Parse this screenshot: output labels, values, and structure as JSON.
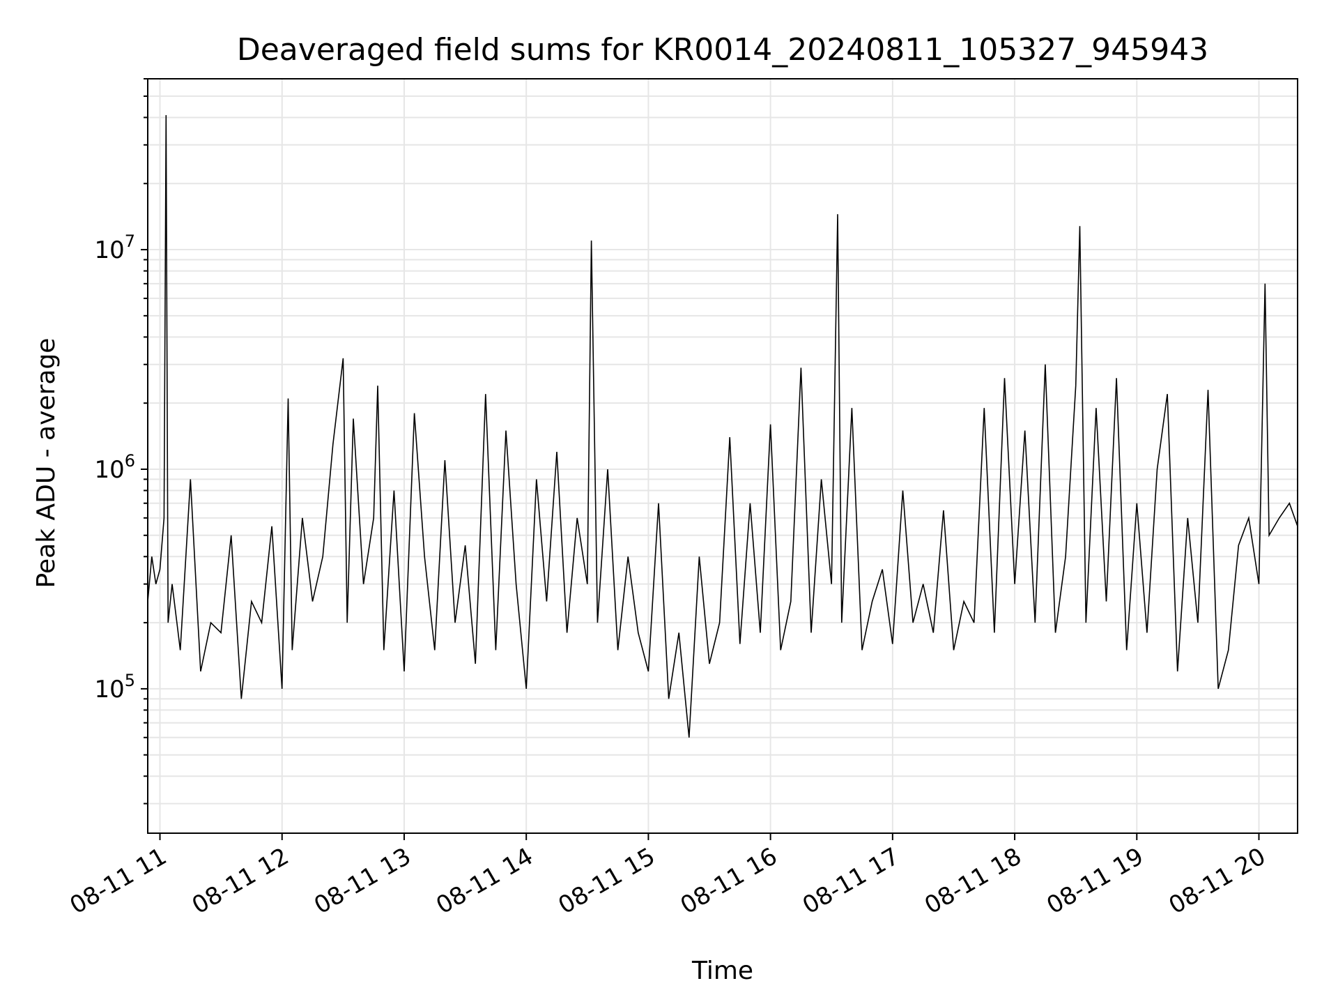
{
  "chart_data": {
    "type": "line",
    "title": "Deaveraged field sums for KR0014_20240811_105327_945943",
    "xlabel": "Time",
    "ylabel": "Peak ADU - average",
    "yscale": "log",
    "ylim": [
      22000,
      60000000
    ],
    "xlim": [
      "2024-08-11 10:54",
      "2024-08-11 20:19"
    ],
    "grid": true,
    "line_color": "#000000",
    "grid_color": "#e6e6e6",
    "x_ticks": [
      {
        "value": "2024-08-11 11:00",
        "label": "08-11 11"
      },
      {
        "value": "2024-08-11 12:00",
        "label": "08-11 12"
      },
      {
        "value": "2024-08-11 13:00",
        "label": "08-11 13"
      },
      {
        "value": "2024-08-11 14:00",
        "label": "08-11 14"
      },
      {
        "value": "2024-08-11 15:00",
        "label": "08-11 15"
      },
      {
        "value": "2024-08-11 16:00",
        "label": "08-11 16"
      },
      {
        "value": "2024-08-11 17:00",
        "label": "08-11 17"
      },
      {
        "value": "2024-08-11 18:00",
        "label": "08-11 18"
      },
      {
        "value": "2024-08-11 19:00",
        "label": "08-11 19"
      },
      {
        "value": "2024-08-11 20:00",
        "label": "08-11 20"
      }
    ],
    "y_ticks": [
      {
        "value": 100000,
        "base": "10",
        "exp": "5"
      },
      {
        "value": 1000000,
        "base": "10",
        "exp": "6"
      },
      {
        "value": 10000000,
        "base": "10",
        "exp": "7"
      }
    ],
    "series": [
      {
        "x": [
          "2024-08-11 10:54",
          "2024-08-11 10:56",
          "2024-08-11 10:58",
          "2024-08-11 11:00",
          "2024-08-11 11:02",
          "2024-08-11 11:03",
          "2024-08-11 11:04",
          "2024-08-11 11:06",
          "2024-08-11 11:10",
          "2024-08-11 11:15",
          "2024-08-11 11:20",
          "2024-08-11 11:25",
          "2024-08-11 11:30",
          "2024-08-11 11:35",
          "2024-08-11 11:40",
          "2024-08-11 11:45",
          "2024-08-11 11:50",
          "2024-08-11 11:55",
          "2024-08-11 12:00",
          "2024-08-11 12:03",
          "2024-08-11 12:05",
          "2024-08-11 12:10",
          "2024-08-11 12:15",
          "2024-08-11 12:20",
          "2024-08-11 12:25",
          "2024-08-11 12:30",
          "2024-08-11 12:32",
          "2024-08-11 12:35",
          "2024-08-11 12:40",
          "2024-08-11 12:45",
          "2024-08-11 12:47",
          "2024-08-11 12:50",
          "2024-08-11 12:55",
          "2024-08-11 13:00",
          "2024-08-11 13:05",
          "2024-08-11 13:10",
          "2024-08-11 13:15",
          "2024-08-11 13:20",
          "2024-08-11 13:25",
          "2024-08-11 13:30",
          "2024-08-11 13:35",
          "2024-08-11 13:40",
          "2024-08-11 13:45",
          "2024-08-11 13:50",
          "2024-08-11 13:55",
          "2024-08-11 14:00",
          "2024-08-11 14:05",
          "2024-08-11 14:10",
          "2024-08-11 14:15",
          "2024-08-11 14:20",
          "2024-08-11 14:25",
          "2024-08-11 14:30",
          "2024-08-11 14:32",
          "2024-08-11 14:35",
          "2024-08-11 14:40",
          "2024-08-11 14:45",
          "2024-08-11 14:50",
          "2024-08-11 14:55",
          "2024-08-11 15:00",
          "2024-08-11 15:05",
          "2024-08-11 15:10",
          "2024-08-11 15:15",
          "2024-08-11 15:20",
          "2024-08-11 15:25",
          "2024-08-11 15:30",
          "2024-08-11 15:35",
          "2024-08-11 15:40",
          "2024-08-11 15:45",
          "2024-08-11 15:50",
          "2024-08-11 15:55",
          "2024-08-11 16:00",
          "2024-08-11 16:05",
          "2024-08-11 16:10",
          "2024-08-11 16:15",
          "2024-08-11 16:20",
          "2024-08-11 16:25",
          "2024-08-11 16:30",
          "2024-08-11 16:33",
          "2024-08-11 16:35",
          "2024-08-11 16:40",
          "2024-08-11 16:45",
          "2024-08-11 16:50",
          "2024-08-11 16:55",
          "2024-08-11 17:00",
          "2024-08-11 17:05",
          "2024-08-11 17:10",
          "2024-08-11 17:15",
          "2024-08-11 17:20",
          "2024-08-11 17:25",
          "2024-08-11 17:30",
          "2024-08-11 17:35",
          "2024-08-11 17:40",
          "2024-08-11 17:45",
          "2024-08-11 17:50",
          "2024-08-11 17:55",
          "2024-08-11 18:00",
          "2024-08-11 18:05",
          "2024-08-11 18:10",
          "2024-08-11 18:15",
          "2024-08-11 18:20",
          "2024-08-11 18:25",
          "2024-08-11 18:30",
          "2024-08-11 18:32",
          "2024-08-11 18:35",
          "2024-08-11 18:40",
          "2024-08-11 18:45",
          "2024-08-11 18:50",
          "2024-08-11 18:55",
          "2024-08-11 19:00",
          "2024-08-11 19:05",
          "2024-08-11 19:10",
          "2024-08-11 19:15",
          "2024-08-11 19:20",
          "2024-08-11 19:25",
          "2024-08-11 19:30",
          "2024-08-11 19:35",
          "2024-08-11 19:40",
          "2024-08-11 19:45",
          "2024-08-11 19:50",
          "2024-08-11 19:55",
          "2024-08-11 20:00",
          "2024-08-11 20:03",
          "2024-08-11 20:05",
          "2024-08-11 20:10",
          "2024-08-11 20:15",
          "2024-08-11 20:19"
        ],
        "y": [
          250000,
          400000,
          300000,
          350000,
          600000,
          41000000,
          200000,
          300000,
          150000,
          900000,
          120000,
          200000,
          180000,
          500000,
          90000,
          250000,
          200000,
          550000,
          100000,
          2100000,
          150000,
          600000,
          250000,
          400000,
          1300000,
          3200000,
          200000,
          1700000,
          300000,
          600000,
          2400000,
          150000,
          800000,
          120000,
          1800000,
          400000,
          150000,
          1100000,
          200000,
          450000,
          130000,
          2200000,
          150000,
          1500000,
          300000,
          100000,
          900000,
          250000,
          1200000,
          180000,
          600000,
          300000,
          11000000,
          200000,
          1000000,
          150000,
          400000,
          180000,
          120000,
          700000,
          90000,
          180000,
          60000,
          400000,
          130000,
          200000,
          1400000,
          160000,
          700000,
          180000,
          1600000,
          150000,
          250000,
          2900000,
          180000,
          900000,
          300000,
          14500000,
          200000,
          1900000,
          150000,
          250000,
          350000,
          160000,
          800000,
          200000,
          300000,
          180000,
          650000,
          150000,
          250000,
          200000,
          1900000,
          180000,
          2600000,
          300000,
          1500000,
          200000,
          3000000,
          180000,
          400000,
          2400000,
          12800000,
          200000,
          1900000,
          250000,
          2600000,
          150000,
          700000,
          180000,
          1000000,
          2200000,
          120000,
          600000,
          200000,
          2300000,
          100000,
          150000,
          450000,
          600000,
          300000,
          7000000,
          500000,
          600000,
          700000,
          550000
        ]
      }
    ]
  }
}
